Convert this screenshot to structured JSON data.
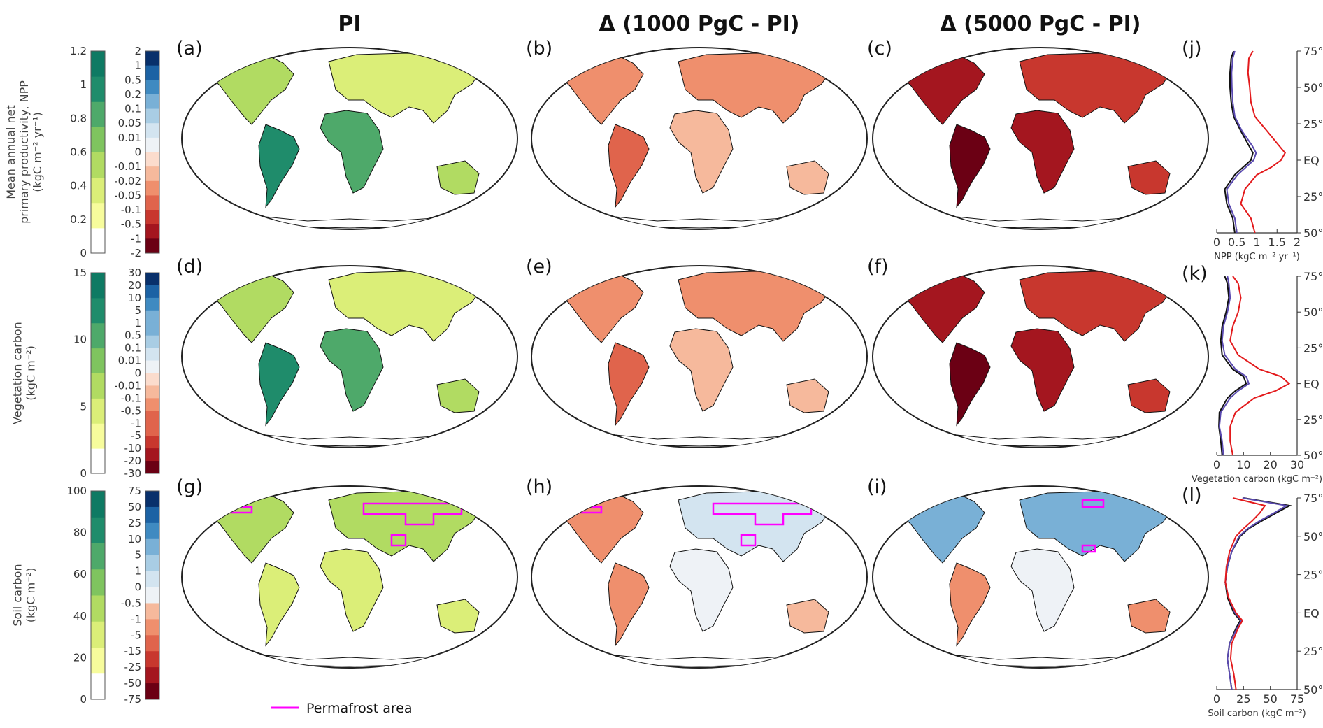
{
  "column_titles": [
    "PI",
    "Δ (1000 PgC - PI)",
    "Δ (5000 PgC - PI)"
  ],
  "panel_labels": [
    "(a)",
    "(b)",
    "(c)",
    "(d)",
    "(e)",
    "(f)",
    "(g)",
    "(h)",
    "(i)",
    "(j)",
    "(k)",
    "(l)"
  ],
  "legend": {
    "label": "Permafrost area",
    "color": "#ff00ff"
  },
  "colorbars": [
    {
      "row": 0,
      "label_lines": [
        "Mean annual net",
        "primary productivity, NPP",
        "(kgC m⁻² yr⁻¹)"
      ],
      "abs_ticks": [
        "1.2",
        "1",
        "0.8",
        "0.6",
        "0.4",
        "0.2",
        "0"
      ],
      "abs_range": [
        0,
        1.2
      ],
      "diff_ticks": [
        "2",
        "1",
        "0.5",
        "0.2",
        "0.1",
        "0.05",
        "0.01",
        "0",
        "-0.01",
        "-0.02",
        "-0.05",
        "-0.1",
        "-0.5",
        "-1",
        "-2"
      ]
    },
    {
      "row": 1,
      "label_lines": [
        "Vegetation carbon",
        "(kgC m⁻²)"
      ],
      "abs_ticks": [
        "15",
        "10",
        "5",
        "0"
      ],
      "abs_range": [
        0,
        15
      ],
      "diff_ticks": [
        "30",
        "20",
        "10",
        "5",
        "1",
        "0.5",
        "0.1",
        "0.01",
        "0",
        "-0.01",
        "-0.1",
        "-0.5",
        "-1",
        "-5",
        "-10",
        "-20",
        "-30"
      ]
    },
    {
      "row": 2,
      "label_lines": [
        "Soil carbon",
        "(kgC m⁻²)"
      ],
      "abs_ticks": [
        "100",
        "80",
        "60",
        "40",
        "20",
        "0"
      ],
      "abs_range": [
        0,
        100
      ],
      "diff_ticks": [
        "75",
        "50",
        "25",
        "10",
        "5",
        "1",
        "0",
        "-0.5",
        "-1",
        "-5",
        "-15",
        "-25",
        "-50",
        "-75"
      ]
    }
  ],
  "colors": {
    "abs_ramp": [
      "#ffffff",
      "#f7fc9c",
      "#dbee78",
      "#b1db62",
      "#7fc45f",
      "#4ea96a",
      "#1f8c6b",
      "#0e7a63"
    ],
    "div_ramp": [
      "#08306b",
      "#1c62a4",
      "#3f8ac1",
      "#79b0d6",
      "#a9cde4",
      "#d3e4f0",
      "#eef2f6",
      "#fbdccd",
      "#f6b99c",
      "#ef8f6d",
      "#e0644c",
      "#c8372e",
      "#a4161f",
      "#6b0014"
    ],
    "npp_line_pi": "#111111",
    "npp_line_1000": "#5a4ab0",
    "npp_line_5000": "#e31a1c"
  },
  "chart_data": [
    {
      "type": "line",
      "panel": "(j)",
      "xlabel": "NPP (kgC m⁻² yr⁻¹)",
      "xlim": [
        0,
        2
      ],
      "xticks": [
        "0",
        "0.5",
        "1",
        "1.5",
        "2"
      ],
      "yticks": [
        "75°N",
        "50°N",
        "25°N",
        "EQ",
        "25°S",
        "50°S"
      ],
      "y": [
        75,
        70,
        60,
        50,
        40,
        30,
        20,
        10,
        5,
        0,
        -5,
        -10,
        -20,
        -30,
        -40,
        -50
      ],
      "series": [
        {
          "values": [
            0.42,
            0.36,
            0.33,
            0.33,
            0.36,
            0.42,
            0.6,
            0.8,
            0.9,
            0.85,
            0.65,
            0.45,
            0.2,
            0.25,
            0.4,
            0.45
          ]
        },
        {
          "values": [
            0.45,
            0.4,
            0.37,
            0.38,
            0.4,
            0.45,
            0.63,
            0.88,
            0.98,
            0.92,
            0.72,
            0.52,
            0.25,
            0.3,
            0.45,
            0.5
          ]
        },
        {
          "values": [
            0.9,
            0.8,
            0.78,
            0.82,
            0.85,
            0.95,
            1.25,
            1.55,
            1.7,
            1.6,
            1.35,
            1.0,
            0.7,
            0.6,
            0.85,
            0.95
          ]
        }
      ]
    },
    {
      "type": "line",
      "panel": "(k)",
      "xlabel": "Vegetation carbon (kgC m⁻²)",
      "xlim": [
        0,
        30
      ],
      "xticks": [
        "0",
        "10",
        "20",
        "30"
      ],
      "yticks": [
        "75°N",
        "50°N",
        "25°N",
        "EQ",
        "25°S",
        "50°S"
      ],
      "y": [
        75,
        70,
        60,
        50,
        40,
        30,
        20,
        10,
        5,
        0,
        -5,
        -10,
        -20,
        -30,
        -40,
        -50
      ],
      "series": [
        {
          "values": [
            3,
            4,
            4.5,
            3.5,
            2,
            1.5,
            2,
            6,
            10,
            11,
            7,
            4,
            1,
            0.8,
            1.5,
            2
          ]
        },
        {
          "values": [
            4,
            4.5,
            5,
            4,
            2.5,
            2,
            3,
            7,
            11,
            12,
            8,
            5,
            1.5,
            1,
            2,
            2.5
          ]
        },
        {
          "values": [
            6,
            8,
            9,
            8,
            6,
            5,
            8,
            16,
            24,
            27,
            22,
            14,
            7,
            5,
            5,
            6
          ]
        }
      ]
    },
    {
      "type": "line",
      "panel": "(l)",
      "xlabel": "Soil carbon (kgC m⁻²)",
      "xlim": [
        0,
        75
      ],
      "xticks": [
        "0",
        "25",
        "50",
        "75"
      ],
      "yticks": [
        "75°N",
        "50°N",
        "25°N",
        "EQ",
        "25°S",
        "50°S"
      ],
      "y": [
        75,
        70,
        65,
        60,
        55,
        50,
        40,
        30,
        20,
        10,
        0,
        -5,
        -10,
        -20,
        -30,
        -40,
        -50
      ],
      "series": [
        {
          "values": [
            25,
            68,
            55,
            42,
            30,
            22,
            14,
            10,
            8,
            10,
            16,
            22,
            18,
            12,
            10,
            12,
            14
          ]
        },
        {
          "values": [
            24,
            65,
            53,
            40,
            29,
            21,
            14,
            10,
            8,
            11,
            17,
            23,
            19,
            12,
            10,
            12,
            14
          ]
        },
        {
          "values": [
            15,
            45,
            40,
            33,
            25,
            18,
            12,
            9,
            8,
            11,
            18,
            24,
            20,
            14,
            13,
            16,
            18
          ]
        }
      ]
    }
  ]
}
